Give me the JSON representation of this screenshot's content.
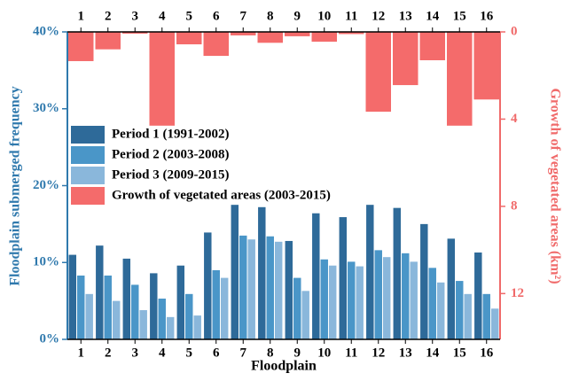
{
  "chart_data": {
    "type": "bar",
    "x_label": "Floodplain",
    "y_label": "Floodplain submerged frequency",
    "y2_label": "Growth of vegetated areas (km²)",
    "categories": [
      "1",
      "2",
      "3",
      "4",
      "5",
      "6",
      "7",
      "8",
      "9",
      "10",
      "11",
      "12",
      "13",
      "14",
      "15",
      "16"
    ],
    "series": [
      {
        "name": "Period 1 (1991-2002)",
        "color": "#2e6a99",
        "values": [
          11.0,
          12.2,
          10.5,
          8.6,
          9.6,
          13.9,
          17.5,
          17.2,
          12.8,
          16.4,
          15.9,
          17.5,
          17.1,
          15.0,
          13.1,
          11.3
        ]
      },
      {
        "name": "Period 2 (2003-2008)",
        "color": "#4a96c8",
        "values": [
          8.3,
          8.3,
          7.1,
          5.3,
          5.9,
          9.0,
          13.5,
          13.4,
          8.0,
          10.4,
          10.1,
          11.6,
          11.2,
          9.3,
          7.6,
          5.9
        ]
      },
      {
        "name": "Period 3 (2009-2015)",
        "color": "#8ab7db",
        "values": [
          5.9,
          5.0,
          3.8,
          2.9,
          3.1,
          8.0,
          13.0,
          12.7,
          6.3,
          9.6,
          9.5,
          10.7,
          10.1,
          7.4,
          5.9,
          4.0
        ]
      },
      {
        "name": "Growth of vegetated areas (2003-2015)",
        "color": "#f46b6b",
        "axis": "y2",
        "values": [
          1.34,
          0.8,
          0.08,
          4.3,
          0.57,
          1.1,
          0.16,
          0.5,
          0.2,
          0.45,
          0.1,
          3.66,
          2.44,
          1.3,
          4.3,
          3.1
        ]
      }
    ],
    "ylim": [
      0,
      40
    ],
    "yticks": [
      {
        "value": 0,
        "label": "0%"
      },
      {
        "value": 10,
        "label": "10%"
      },
      {
        "value": 20,
        "label": "20%"
      },
      {
        "value": 30,
        "label": "30%"
      },
      {
        "value": 40,
        "label": "40%"
      }
    ],
    "y2lim": [
      0,
      14.1
    ],
    "y2ticks": [
      0,
      4,
      8,
      12
    ],
    "y2_inverted": true,
    "y_color": "#2f79ad",
    "y2_color": "#f06a6a"
  }
}
